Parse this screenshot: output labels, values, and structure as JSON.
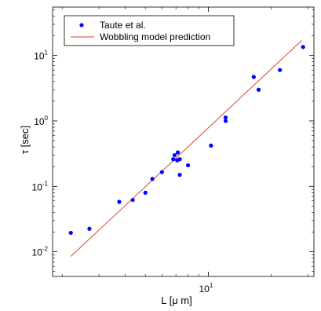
{
  "chart_data": {
    "type": "scatter",
    "xscale": "log",
    "yscale": "log",
    "xlim": [
      1.8,
      32
    ],
    "ylim": [
      0.0042,
      55
    ],
    "xlabel": "L [μ m]",
    "ylabel": "τ [sec]",
    "x_ticks": [
      {
        "base": "10",
        "exp": "1",
        "value": 10
      }
    ],
    "y_ticks": [
      {
        "base": "10",
        "exp": "-2",
        "value": 0.01
      },
      {
        "base": "10",
        "exp": "-1",
        "value": 0.1
      },
      {
        "base": "10",
        "exp": "0",
        "value": 1
      },
      {
        "base": "10",
        "exp": "1",
        "value": 10
      }
    ],
    "legend": {
      "position": "top-left"
    },
    "series": [
      {
        "name": "Taute et al.",
        "kind": "markers",
        "color": "#0000ff",
        "points": [
          [
            2.2,
            0.0195
          ],
          [
            2.7,
            0.0225
          ],
          [
            3.75,
            0.058
          ],
          [
            4.35,
            0.062
          ],
          [
            5.0,
            0.08
          ],
          [
            5.4,
            0.13
          ],
          [
            6.0,
            0.165
          ],
          [
            6.8,
            0.26
          ],
          [
            6.9,
            0.3
          ],
          [
            7.1,
            0.25
          ],
          [
            7.15,
            0.33
          ],
          [
            7.3,
            0.26
          ],
          [
            7.3,
            0.15
          ],
          [
            8.0,
            0.21
          ],
          [
            10.3,
            0.42
          ],
          [
            12.1,
            1.0
          ],
          [
            12.1,
            1.13
          ],
          [
            16.5,
            4.7
          ],
          [
            17.4,
            3.0
          ],
          [
            22.0,
            6.0
          ],
          [
            28.4,
            13.5
          ]
        ]
      },
      {
        "name": "Wobbling model prediction",
        "kind": "line",
        "color": "#d24b2b",
        "points": [
          [
            2.2,
            0.0085
          ],
          [
            28.0,
            17.0
          ]
        ]
      }
    ]
  }
}
